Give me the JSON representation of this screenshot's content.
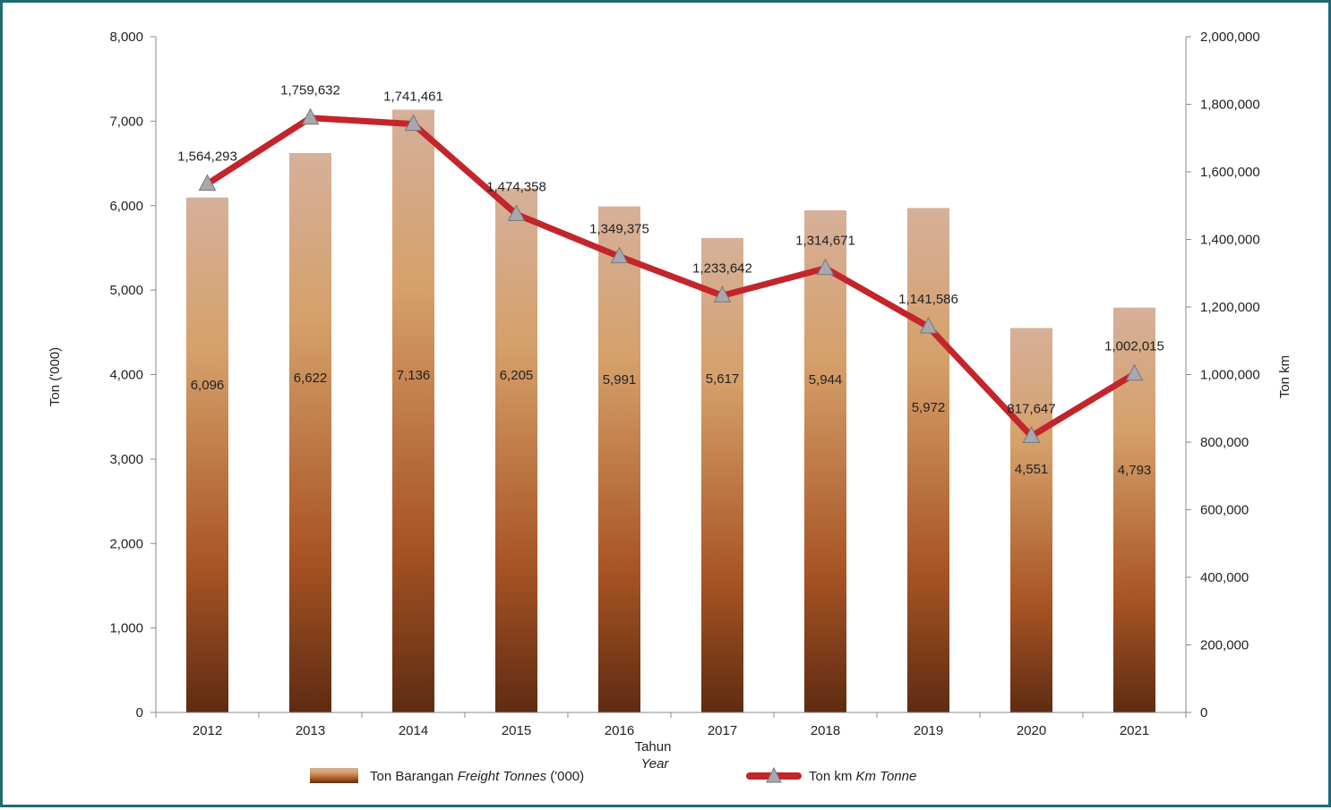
{
  "chart_data": {
    "type": "bar",
    "categories": [
      "2012",
      "2013",
      "2014",
      "2015",
      "2016",
      "2017",
      "2018",
      "2019",
      "2020",
      "2021"
    ],
    "series": [
      {
        "name": "Ton Barangan Freight Tonnes ('000)",
        "type": "bar",
        "axis": "left",
        "values": [
          6096,
          6622,
          7136,
          6205,
          5991,
          5617,
          5944,
          5972,
          4551,
          4793
        ],
        "labels": [
          "6,096",
          "6,622",
          "7,136",
          "6,205",
          "5,991",
          "5,617",
          "5,944",
          "5,972",
          "4,551",
          "4,793"
        ]
      },
      {
        "name": "Ton km Km Tonne",
        "type": "line",
        "axis": "right",
        "values": [
          1564293,
          1759632,
          1741461,
          1474358,
          1349375,
          1233642,
          1314671,
          1141586,
          817647,
          1002015
        ],
        "labels": [
          "1,564,293",
          "1,759,632",
          "1,741,461",
          "1,474,358",
          "1,349,375",
          "1,233,642",
          "1,314,671",
          "1,141,586",
          "817,647",
          "1,002,015"
        ]
      }
    ],
    "ylabel_left": "Ton ('000)",
    "ylabel_right": "Ton km",
    "xlabel": "Tahun",
    "xlabel_italic": "Year",
    "ylim_left": [
      0,
      8000
    ],
    "ylim_right": [
      0,
      2000000
    ],
    "yticks_left": [
      "0",
      "1,000",
      "2,000",
      "3,000",
      "4,000",
      "5,000",
      "6,000",
      "7,000",
      "8,000"
    ],
    "yticks_right": [
      "0",
      "200,000",
      "400,000",
      "600,000",
      "800,000",
      "1,000,000",
      "1,200,000",
      "1,400,000",
      "1,600,000",
      "1,800,000",
      "2,000,000"
    ],
    "grid": false,
    "legend": {
      "position": "bottom",
      "bar_label": "Ton Barangan ",
      "bar_label_italic": "Freight Tonnes",
      "bar_label_suffix": " ('000)",
      "line_label": "Ton km ",
      "line_label_italic": "Km Tonne"
    },
    "colors": {
      "bar_top": "#d6b09a",
      "bar_mid_upper": "#d5a06a",
      "bar_mid": "#a85424",
      "bar_bottom": "#5e2c12",
      "line": "#c4242b",
      "marker_fill": "#a8a8b0",
      "marker_stroke": "#777777",
      "frame": "#1f6a73"
    }
  }
}
